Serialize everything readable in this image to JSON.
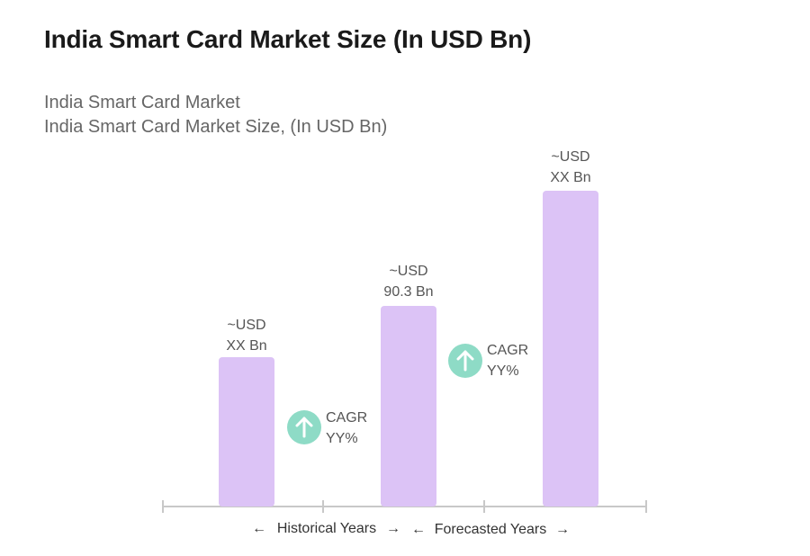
{
  "title": "India Smart Card Market Size (In USD Bn)",
  "subtitle_1": "India Smart Card Market",
  "subtitle_2": "India Smart Card Market Size, (In USD Bn)",
  "colors": {
    "bar": "#dcc3f6",
    "cagr_circle": "#8edbc6",
    "axis": "#c8c8c8"
  },
  "chart_data": {
    "type": "bar",
    "categories": [
      "",
      "",
      ""
    ],
    "values": [
      null,
      90.3,
      null
    ],
    "bar_labels": [
      [
        "~USD",
        "XX Bn"
      ],
      [
        "~USD",
        "90.3 Bn"
      ],
      [
        "~USD",
        "XX Bn"
      ]
    ],
    "annotations": [
      {
        "text_lines": [
          "CAGR",
          "YY%"
        ],
        "icon": "arrow-up-icon",
        "between": [
          0,
          1
        ]
      },
      {
        "text_lines": [
          "CAGR",
          "YY%"
        ],
        "icon": "arrow-up-icon",
        "between": [
          1,
          2
        ]
      }
    ],
    "axis_segments": [
      "Historical Years",
      "Forecasted Years"
    ],
    "grid": false,
    "legend": "none"
  }
}
